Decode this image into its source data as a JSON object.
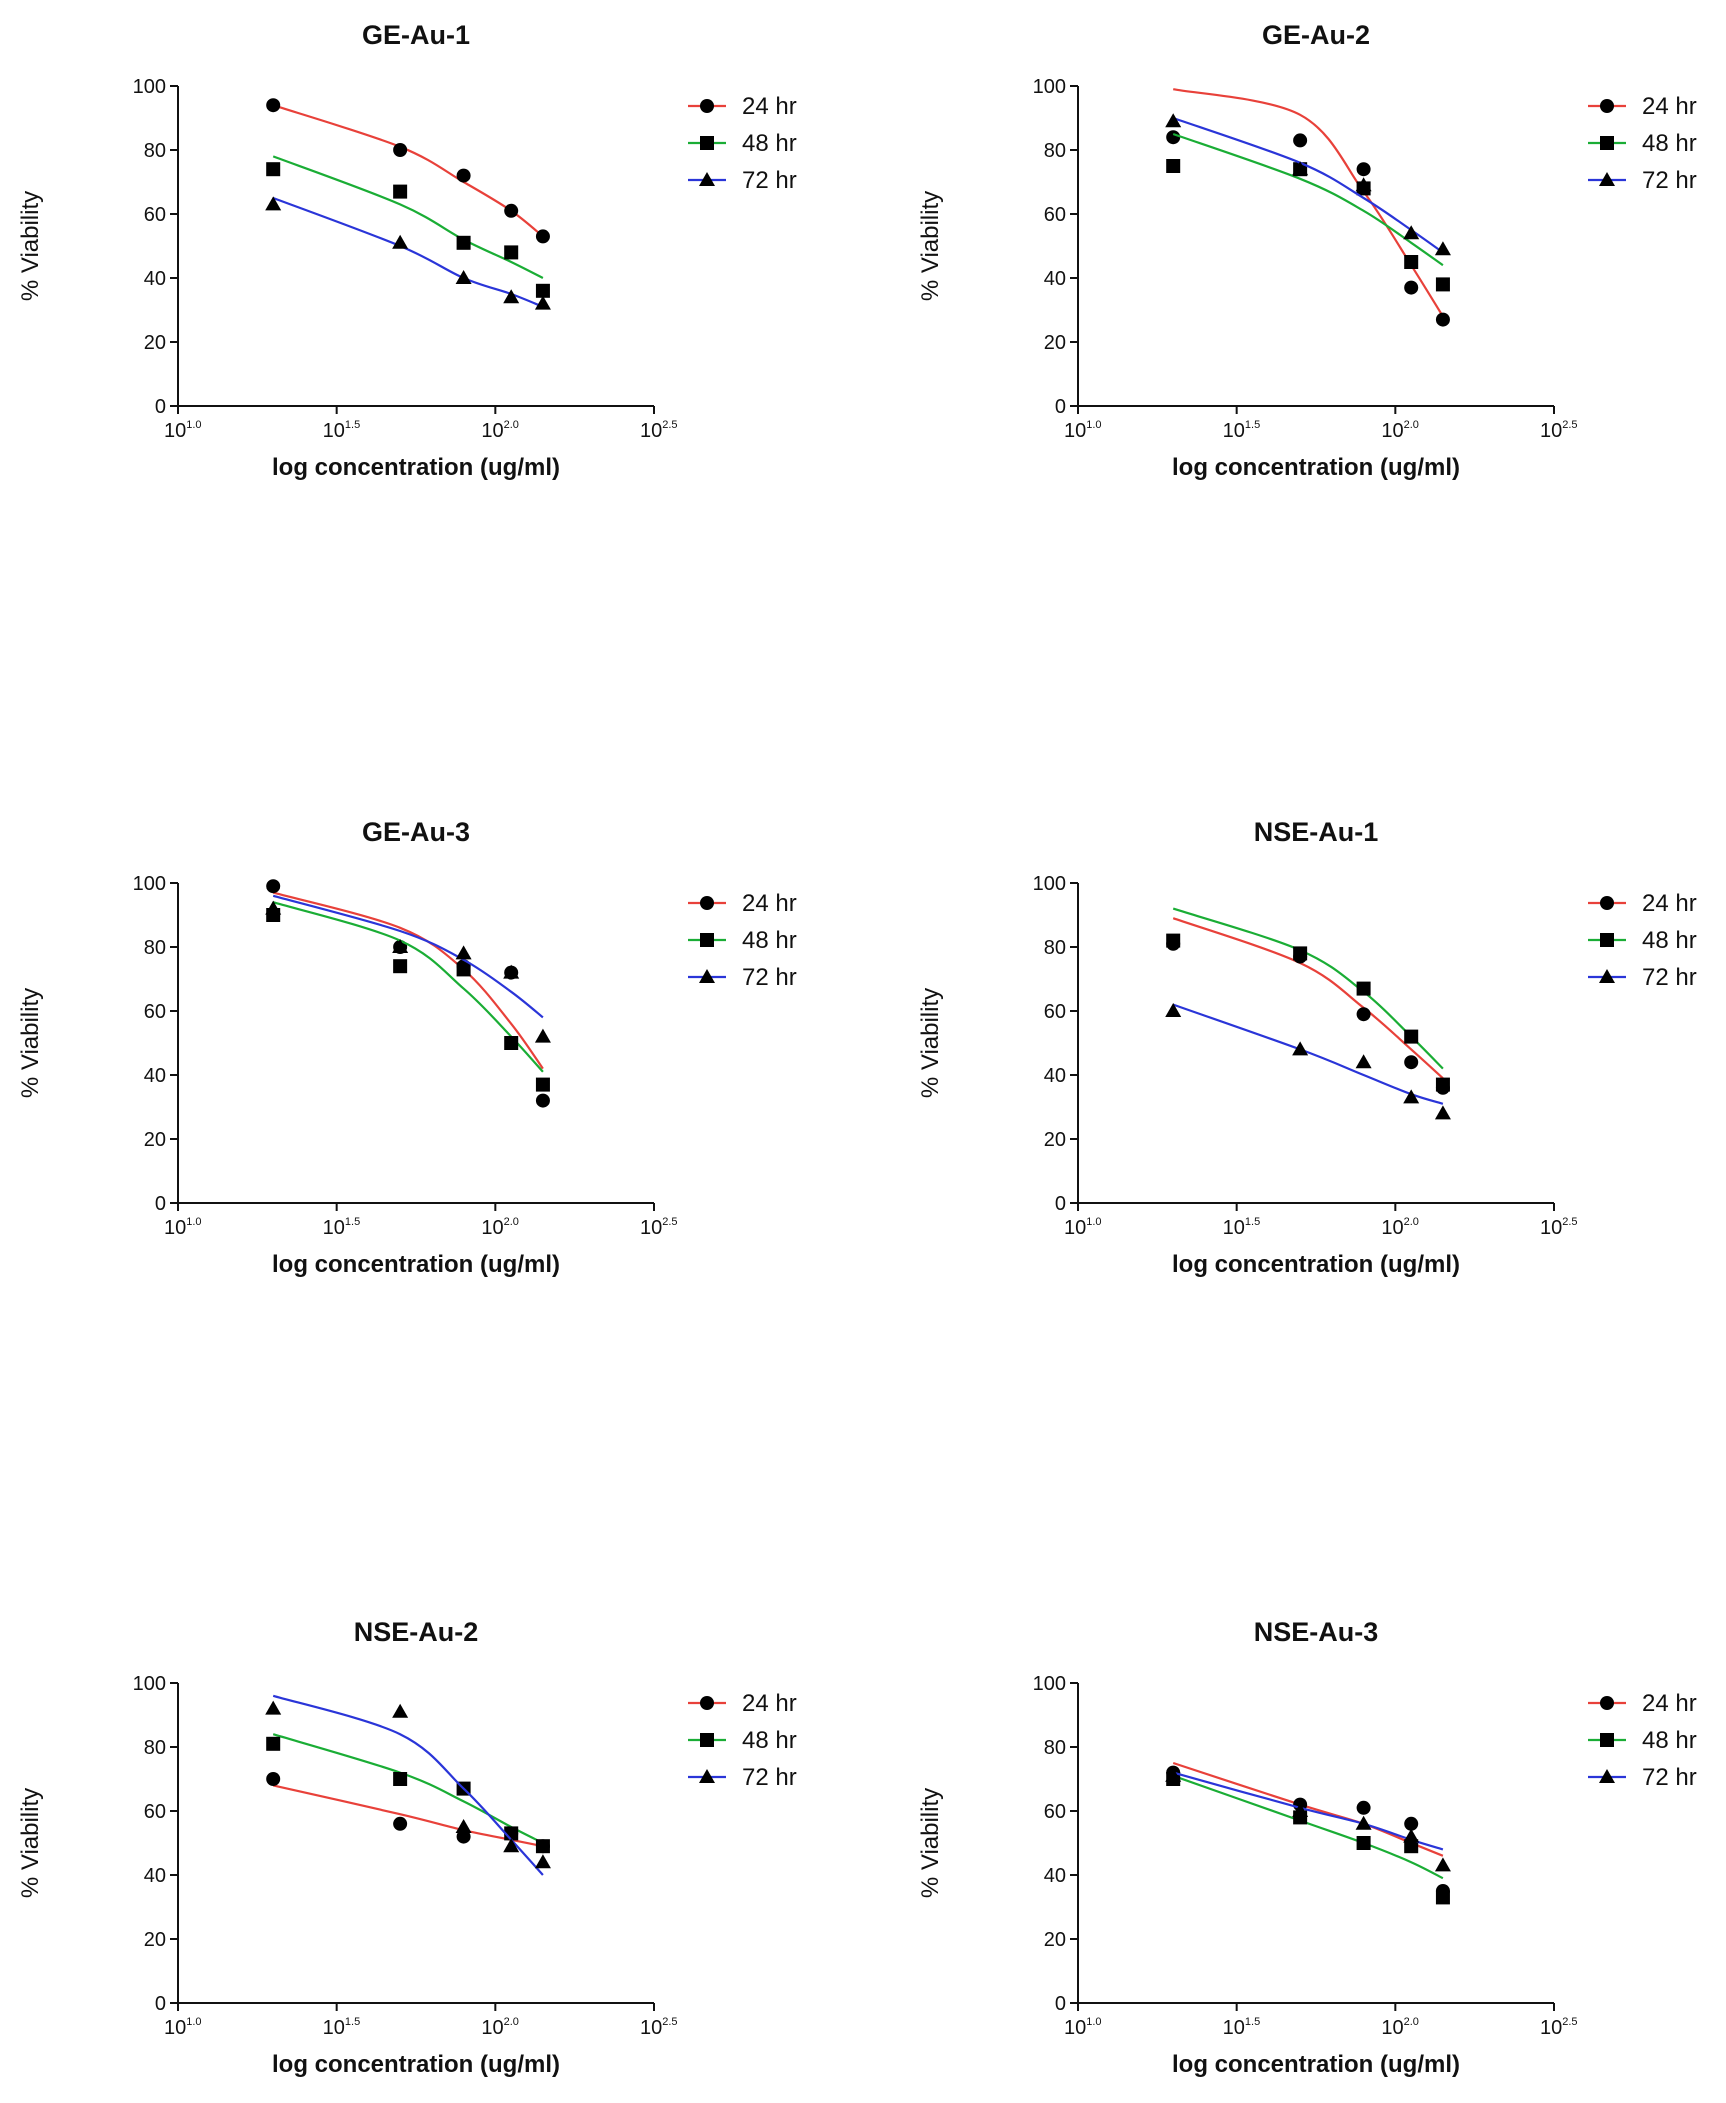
{
  "colors": {
    "24 hr": "#e8413a",
    "48 hr": "#1aad35",
    "72 hr": "#2a35d8",
    "axis": "#111111",
    "marker": "#000000"
  },
  "chart_data": [
    {
      "type": "scatter",
      "title": "GE-Au-1",
      "xlabel": "log concentration (ug/ml)",
      "ylabel": "% Viability",
      "xscale": "log10",
      "xlim": [
        1.0,
        2.5
      ],
      "ylim": [
        0,
        100
      ],
      "yticks": [
        "0",
        "20",
        "40",
        "60",
        "80",
        "100"
      ],
      "xticks": [
        {
          "base": "10",
          "exp": "1.0"
        },
        {
          "base": "10",
          "exp": "1.5"
        },
        {
          "base": "10",
          "exp": "2.0"
        },
        {
          "base": "10",
          "exp": "2.5"
        }
      ],
      "legend_position": "right",
      "x": [
        1.3,
        1.7,
        1.9,
        2.05,
        2.15
      ],
      "series": [
        {
          "name": "24 hr",
          "marker": "circle",
          "color_key": "24 hr",
          "values": [
            94,
            80,
            72,
            61,
            53
          ],
          "fit": [
            94,
            81,
            70,
            61,
            53
          ]
        },
        {
          "name": "48 hr",
          "marker": "square",
          "color_key": "48 hr",
          "values": [
            74,
            67,
            51,
            48,
            36
          ],
          "fit": [
            78,
            63,
            52,
            45,
            40
          ]
        },
        {
          "name": "72 hr",
          "marker": "triangle",
          "color_key": "72 hr",
          "values": [
            63,
            51,
            40,
            34,
            32
          ],
          "fit": [
            65,
            50,
            40,
            35,
            31
          ]
        }
      ]
    },
    {
      "type": "scatter",
      "title": "GE-Au-2",
      "xlabel": "log concentration (ug/ml)",
      "ylabel": "% Viability",
      "xscale": "log10",
      "xlim": [
        1.0,
        2.5
      ],
      "ylim": [
        0,
        100
      ],
      "yticks": [
        "0",
        "20",
        "40",
        "60",
        "80",
        "100"
      ],
      "xticks": [
        {
          "base": "10",
          "exp": "1.0"
        },
        {
          "base": "10",
          "exp": "1.5"
        },
        {
          "base": "10",
          "exp": "2.0"
        },
        {
          "base": "10",
          "exp": "2.5"
        }
      ],
      "legend_position": "right",
      "x": [
        1.3,
        1.7,
        1.9,
        2.05,
        2.15
      ],
      "series": [
        {
          "name": "24 hr",
          "marker": "circle",
          "color_key": "24 hr",
          "values": [
            84,
            83,
            74,
            37,
            27
          ],
          "fit": [
            99,
            91,
            67,
            44,
            28
          ]
        },
        {
          "name": "48 hr",
          "marker": "square",
          "color_key": "48 hr",
          "values": [
            75,
            74,
            68,
            45,
            38
          ],
          "fit": [
            85,
            71,
            61,
            51,
            44
          ]
        },
        {
          "name": "72 hr",
          "marker": "triangle",
          "color_key": "72 hr",
          "values": [
            89,
            74,
            69,
            54,
            49
          ],
          "fit": [
            90,
            76,
            65,
            55,
            48
          ]
        }
      ]
    },
    {
      "type": "scatter",
      "title": "GE-Au-3",
      "xlabel": "log concentration (ug/ml)",
      "ylabel": "% Viability",
      "xscale": "log10",
      "xlim": [
        1.0,
        2.5
      ],
      "ylim": [
        0,
        100
      ],
      "yticks": [
        "0",
        "20",
        "40",
        "60",
        "80",
        "100"
      ],
      "xticks": [
        {
          "base": "10",
          "exp": "1.0"
        },
        {
          "base": "10",
          "exp": "1.5"
        },
        {
          "base": "10",
          "exp": "2.0"
        },
        {
          "base": "10",
          "exp": "2.5"
        }
      ],
      "legend_position": "right",
      "x": [
        1.3,
        1.7,
        1.9,
        2.05,
        2.15
      ],
      "series": [
        {
          "name": "24 hr",
          "marker": "circle",
          "color_key": "24 hr",
          "values": [
            99,
            80,
            74,
            72,
            32
          ],
          "fit": [
            97,
            86,
            73,
            56,
            42
          ]
        },
        {
          "name": "48 hr",
          "marker": "square",
          "color_key": "48 hr",
          "values": [
            90,
            74,
            73,
            50,
            37
          ],
          "fit": [
            94,
            82,
            67,
            52,
            41
          ]
        },
        {
          "name": "72 hr",
          "marker": "triangle",
          "color_key": "72 hr",
          "values": [
            92,
            80,
            78,
            72,
            52
          ],
          "fit": [
            96,
            85,
            76,
            66,
            58
          ]
        }
      ]
    },
    {
      "type": "scatter",
      "title": "NSE-Au-1",
      "xlabel": "log concentration (ug/ml)",
      "ylabel": "% Viability",
      "xscale": "log10",
      "xlim": [
        1.0,
        2.5
      ],
      "ylim": [
        0,
        100
      ],
      "yticks": [
        "0",
        "20",
        "40",
        "60",
        "80",
        "100"
      ],
      "xticks": [
        {
          "base": "10",
          "exp": "1.0"
        },
        {
          "base": "10",
          "exp": "1.5"
        },
        {
          "base": "10",
          "exp": "2.0"
        },
        {
          "base": "10",
          "exp": "2.5"
        }
      ],
      "legend_position": "right",
      "x": [
        1.3,
        1.7,
        1.9,
        2.05,
        2.15
      ],
      "series": [
        {
          "name": "24 hr",
          "marker": "circle",
          "color_key": "24 hr",
          "values": [
            81,
            77,
            59,
            44,
            36
          ],
          "fit": [
            89,
            75,
            61,
            48,
            39
          ]
        },
        {
          "name": "48 hr",
          "marker": "square",
          "color_key": "48 hr",
          "values": [
            82,
            78,
            67,
            52,
            37
          ],
          "fit": [
            92,
            79,
            66,
            52,
            42
          ]
        },
        {
          "name": "72 hr",
          "marker": "triangle",
          "color_key": "72 hr",
          "values": [
            60,
            48,
            44,
            33,
            28
          ],
          "fit": [
            62,
            48,
            40,
            34,
            31
          ]
        }
      ]
    },
    {
      "type": "scatter",
      "title": "NSE-Au-2",
      "xlabel": "log concentration (ug/ml)",
      "ylabel": "% Viability",
      "xscale": "log10",
      "xlim": [
        1.0,
        2.5
      ],
      "ylim": [
        0,
        100
      ],
      "yticks": [
        "0",
        "20",
        "40",
        "60",
        "80",
        "100"
      ],
      "xticks": [
        {
          "base": "10",
          "exp": "1.0"
        },
        {
          "base": "10",
          "exp": "1.5"
        },
        {
          "base": "10",
          "exp": "2.0"
        },
        {
          "base": "10",
          "exp": "2.5"
        }
      ],
      "legend_position": "right",
      "x": [
        1.3,
        1.7,
        1.9,
        2.05,
        2.15
      ],
      "series": [
        {
          "name": "24 hr",
          "marker": "circle",
          "color_key": "24 hr",
          "values": [
            70,
            56,
            52,
            53,
            49
          ],
          "fit": [
            68,
            59,
            54,
            51,
            49
          ]
        },
        {
          "name": "48 hr",
          "marker": "square",
          "color_key": "48 hr",
          "values": [
            81,
            70,
            67,
            53,
            49
          ],
          "fit": [
            84,
            72,
            63,
            55,
            50
          ]
        },
        {
          "name": "72 hr",
          "marker": "triangle",
          "color_key": "72 hr",
          "values": [
            92,
            91,
            55,
            49,
            44
          ],
          "fit": [
            96,
            84,
            67,
            51,
            40
          ]
        }
      ]
    },
    {
      "type": "scatter",
      "title": "NSE-Au-3",
      "xlabel": "log concentration (ug/ml)",
      "ylabel": "% Viability",
      "xscale": "log10",
      "xlim": [
        1.0,
        2.5
      ],
      "ylim": [
        0,
        100
      ],
      "yticks": [
        "0",
        "20",
        "40",
        "60",
        "80",
        "100"
      ],
      "xticks": [
        {
          "base": "10",
          "exp": "1.0"
        },
        {
          "base": "10",
          "exp": "1.5"
        },
        {
          "base": "10",
          "exp": "2.0"
        },
        {
          "base": "10",
          "exp": "2.5"
        }
      ],
      "legend_position": "right",
      "x": [
        1.3,
        1.7,
        1.9,
        2.05,
        2.15
      ],
      "series": [
        {
          "name": "24 hr",
          "marker": "circle",
          "color_key": "24 hr",
          "values": [
            72,
            62,
            61,
            56,
            35
          ],
          "fit": [
            75,
            62,
            56,
            50,
            46
          ]
        },
        {
          "name": "48 hr",
          "marker": "square",
          "color_key": "48 hr",
          "values": [
            70,
            58,
            50,
            49,
            33
          ],
          "fit": [
            71,
            57,
            50,
            44,
            39
          ]
        },
        {
          "name": "72 hr",
          "marker": "triangle",
          "color_key": "72 hr",
          "values": [
            71,
            60,
            56,
            52,
            43
          ],
          "fit": [
            72,
            61,
            56,
            51,
            48
          ]
        }
      ]
    }
  ]
}
